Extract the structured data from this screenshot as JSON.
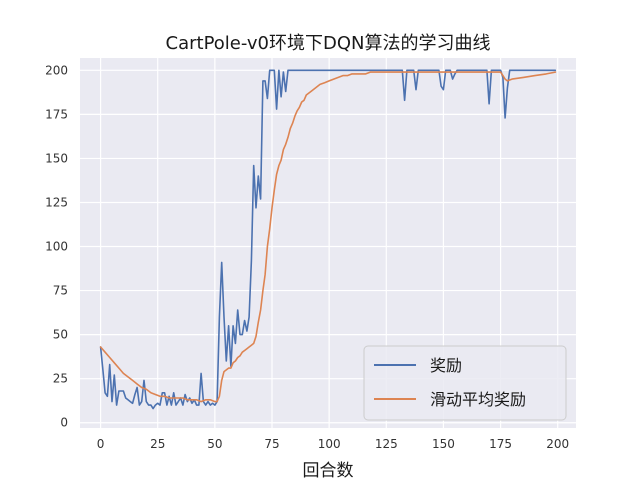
{
  "chart_data": {
    "type": "line",
    "title": "CartPole-v0环境下DQN算法的学习曲线",
    "xlabel": "回合数",
    "ylabel": "",
    "xlim": [
      -9,
      208
    ],
    "ylim": [
      -3,
      207
    ],
    "xticks": [
      0,
      25,
      50,
      75,
      100,
      125,
      150,
      175,
      200
    ],
    "yticks": [
      0,
      25,
      50,
      75,
      100,
      125,
      150,
      175,
      200
    ],
    "grid": true,
    "legend": "lower-right",
    "colors": {
      "background": "#eaeaf2",
      "grid": "#ffffff",
      "reward": "#4c72b0",
      "smooth": "#dd8452"
    },
    "series": [
      {
        "name": "奖励",
        "color": "#4c72b0",
        "x": [
          0,
          1,
          2,
          3,
          4,
          5,
          6,
          7,
          8,
          9,
          10,
          11,
          12,
          13,
          14,
          15,
          16,
          17,
          18,
          19,
          20,
          21,
          22,
          23,
          24,
          25,
          26,
          27,
          28,
          29,
          30,
          31,
          32,
          33,
          34,
          35,
          36,
          37,
          38,
          39,
          40,
          41,
          42,
          43,
          44,
          45,
          46,
          47,
          48,
          49,
          50,
          51,
          52,
          53,
          54,
          55,
          56,
          57,
          58,
          59,
          60,
          61,
          62,
          63,
          64,
          65,
          66,
          67,
          68,
          69,
          70,
          71,
          72,
          73,
          74,
          75,
          76,
          77,
          78,
          79,
          80,
          81,
          82,
          83,
          84,
          85,
          86,
          87,
          88,
          89,
          90,
          91,
          92,
          93,
          94,
          95,
          96,
          97,
          98,
          99,
          100,
          101,
          102,
          103,
          104,
          105,
          106,
          107,
          108,
          109,
          110,
          111,
          112,
          113,
          114,
          115,
          116,
          117,
          118,
          119,
          120,
          121,
          122,
          123,
          124,
          125,
          126,
          127,
          128,
          129,
          130,
          131,
          132,
          133,
          134,
          135,
          136,
          137,
          138,
          139,
          140,
          141,
          142,
          143,
          144,
          145,
          146,
          147,
          148,
          149,
          150,
          151,
          152,
          153,
          154,
          155,
          156,
          157,
          158,
          159,
          160,
          161,
          162,
          163,
          164,
          165,
          166,
          167,
          168,
          169,
          170,
          171,
          172,
          173,
          174,
          175,
          176,
          177,
          178,
          179,
          180,
          181,
          182,
          183,
          184,
          185,
          186,
          187,
          188,
          189,
          190,
          191,
          192,
          193,
          194,
          195,
          196,
          197,
          198,
          199
        ],
        "values": [
          43,
          30,
          17,
          15,
          33,
          12,
          27,
          10,
          18,
          18,
          18,
          14,
          13,
          12,
          11,
          16,
          20,
          10,
          12,
          24,
          12,
          10,
          10,
          8,
          10,
          11,
          10,
          17,
          17,
          10,
          15,
          10,
          17,
          10,
          12,
          14,
          10,
          16,
          12,
          14,
          11,
          13,
          10,
          10,
          28,
          12,
          10,
          12,
          10,
          11,
          10,
          12,
          60,
          91,
          60,
          35,
          55,
          32,
          55,
          45,
          64,
          50,
          50,
          58,
          52,
          60,
          92,
          146,
          122,
          140,
          127,
          194,
          194,
          184,
          200,
          200,
          200,
          178,
          200,
          185,
          199,
          188,
          200,
          200,
          200,
          200,
          200,
          200,
          200,
          200,
          200,
          200,
          200,
          200,
          200,
          200,
          200,
          200,
          200,
          200,
          200,
          200,
          200,
          200,
          200,
          200,
          200,
          200,
          200,
          200,
          200,
          200,
          200,
          200,
          200,
          200,
          200,
          200,
          200,
          200,
          200,
          200,
          200,
          200,
          200,
          200,
          200,
          200,
          200,
          200,
          200,
          200,
          200,
          183,
          200,
          200,
          200,
          200,
          189,
          200,
          200,
          200,
          200,
          200,
          200,
          200,
          200,
          200,
          200,
          191,
          189,
          200,
          200,
          200,
          195,
          198,
          200,
          200,
          200,
          200,
          200,
          200,
          200,
          200,
          200,
          200,
          200,
          200,
          200,
          200,
          181,
          200,
          200,
          200,
          200,
          200,
          196,
          173,
          190,
          200,
          200,
          200,
          200,
          200,
          200,
          200,
          200,
          200,
          200,
          200,
          200,
          200,
          200,
          200,
          200,
          200,
          200,
          200,
          200,
          200
        ]
      },
      {
        "name": "滑动平均奖励",
        "color": "#dd8452",
        "x": [
          0,
          2,
          4,
          6,
          8,
          10,
          12,
          14,
          16,
          18,
          20,
          22,
          24,
          26,
          28,
          30,
          32,
          34,
          36,
          38,
          40,
          42,
          44,
          46,
          48,
          50,
          51,
          52,
          53,
          54,
          55,
          56,
          57,
          58,
          59,
          60,
          61,
          62,
          63,
          64,
          65,
          66,
          67,
          68,
          69,
          70,
          71,
          72,
          73,
          74,
          75,
          76,
          77,
          78,
          79,
          80,
          81,
          82,
          83,
          84,
          85,
          86,
          87,
          88,
          89,
          90,
          92,
          94,
          96,
          98,
          100,
          102,
          104,
          106,
          108,
          110,
          112,
          114,
          116,
          118,
          120,
          125,
          130,
          135,
          140,
          145,
          150,
          155,
          160,
          165,
          170,
          175,
          176,
          177,
          178,
          180,
          185,
          190,
          195,
          199
        ],
        "values": [
          43,
          40,
          37,
          34,
          31,
          28,
          26,
          24,
          22,
          20,
          19,
          17,
          16,
          15,
          15,
          14,
          14,
          14,
          14,
          13,
          13,
          13,
          12,
          13,
          13,
          12,
          12,
          15,
          24,
          29,
          30,
          31,
          31,
          34,
          35,
          37,
          38,
          40,
          41,
          42,
          43,
          44,
          45,
          49,
          57,
          64,
          75,
          84,
          100,
          110,
          122,
          132,
          141,
          146,
          149,
          155,
          158,
          162,
          167,
          170,
          174,
          177,
          179,
          182,
          183,
          186,
          188,
          190,
          192,
          193,
          194,
          195,
          196,
          197,
          197,
          198,
          198,
          198,
          198,
          199,
          199,
          199,
          199,
          199,
          199,
          199,
          199,
          199,
          199,
          199,
          199,
          199,
          197,
          195,
          194,
          195,
          196,
          197,
          198,
          199
        ]
      }
    ]
  }
}
